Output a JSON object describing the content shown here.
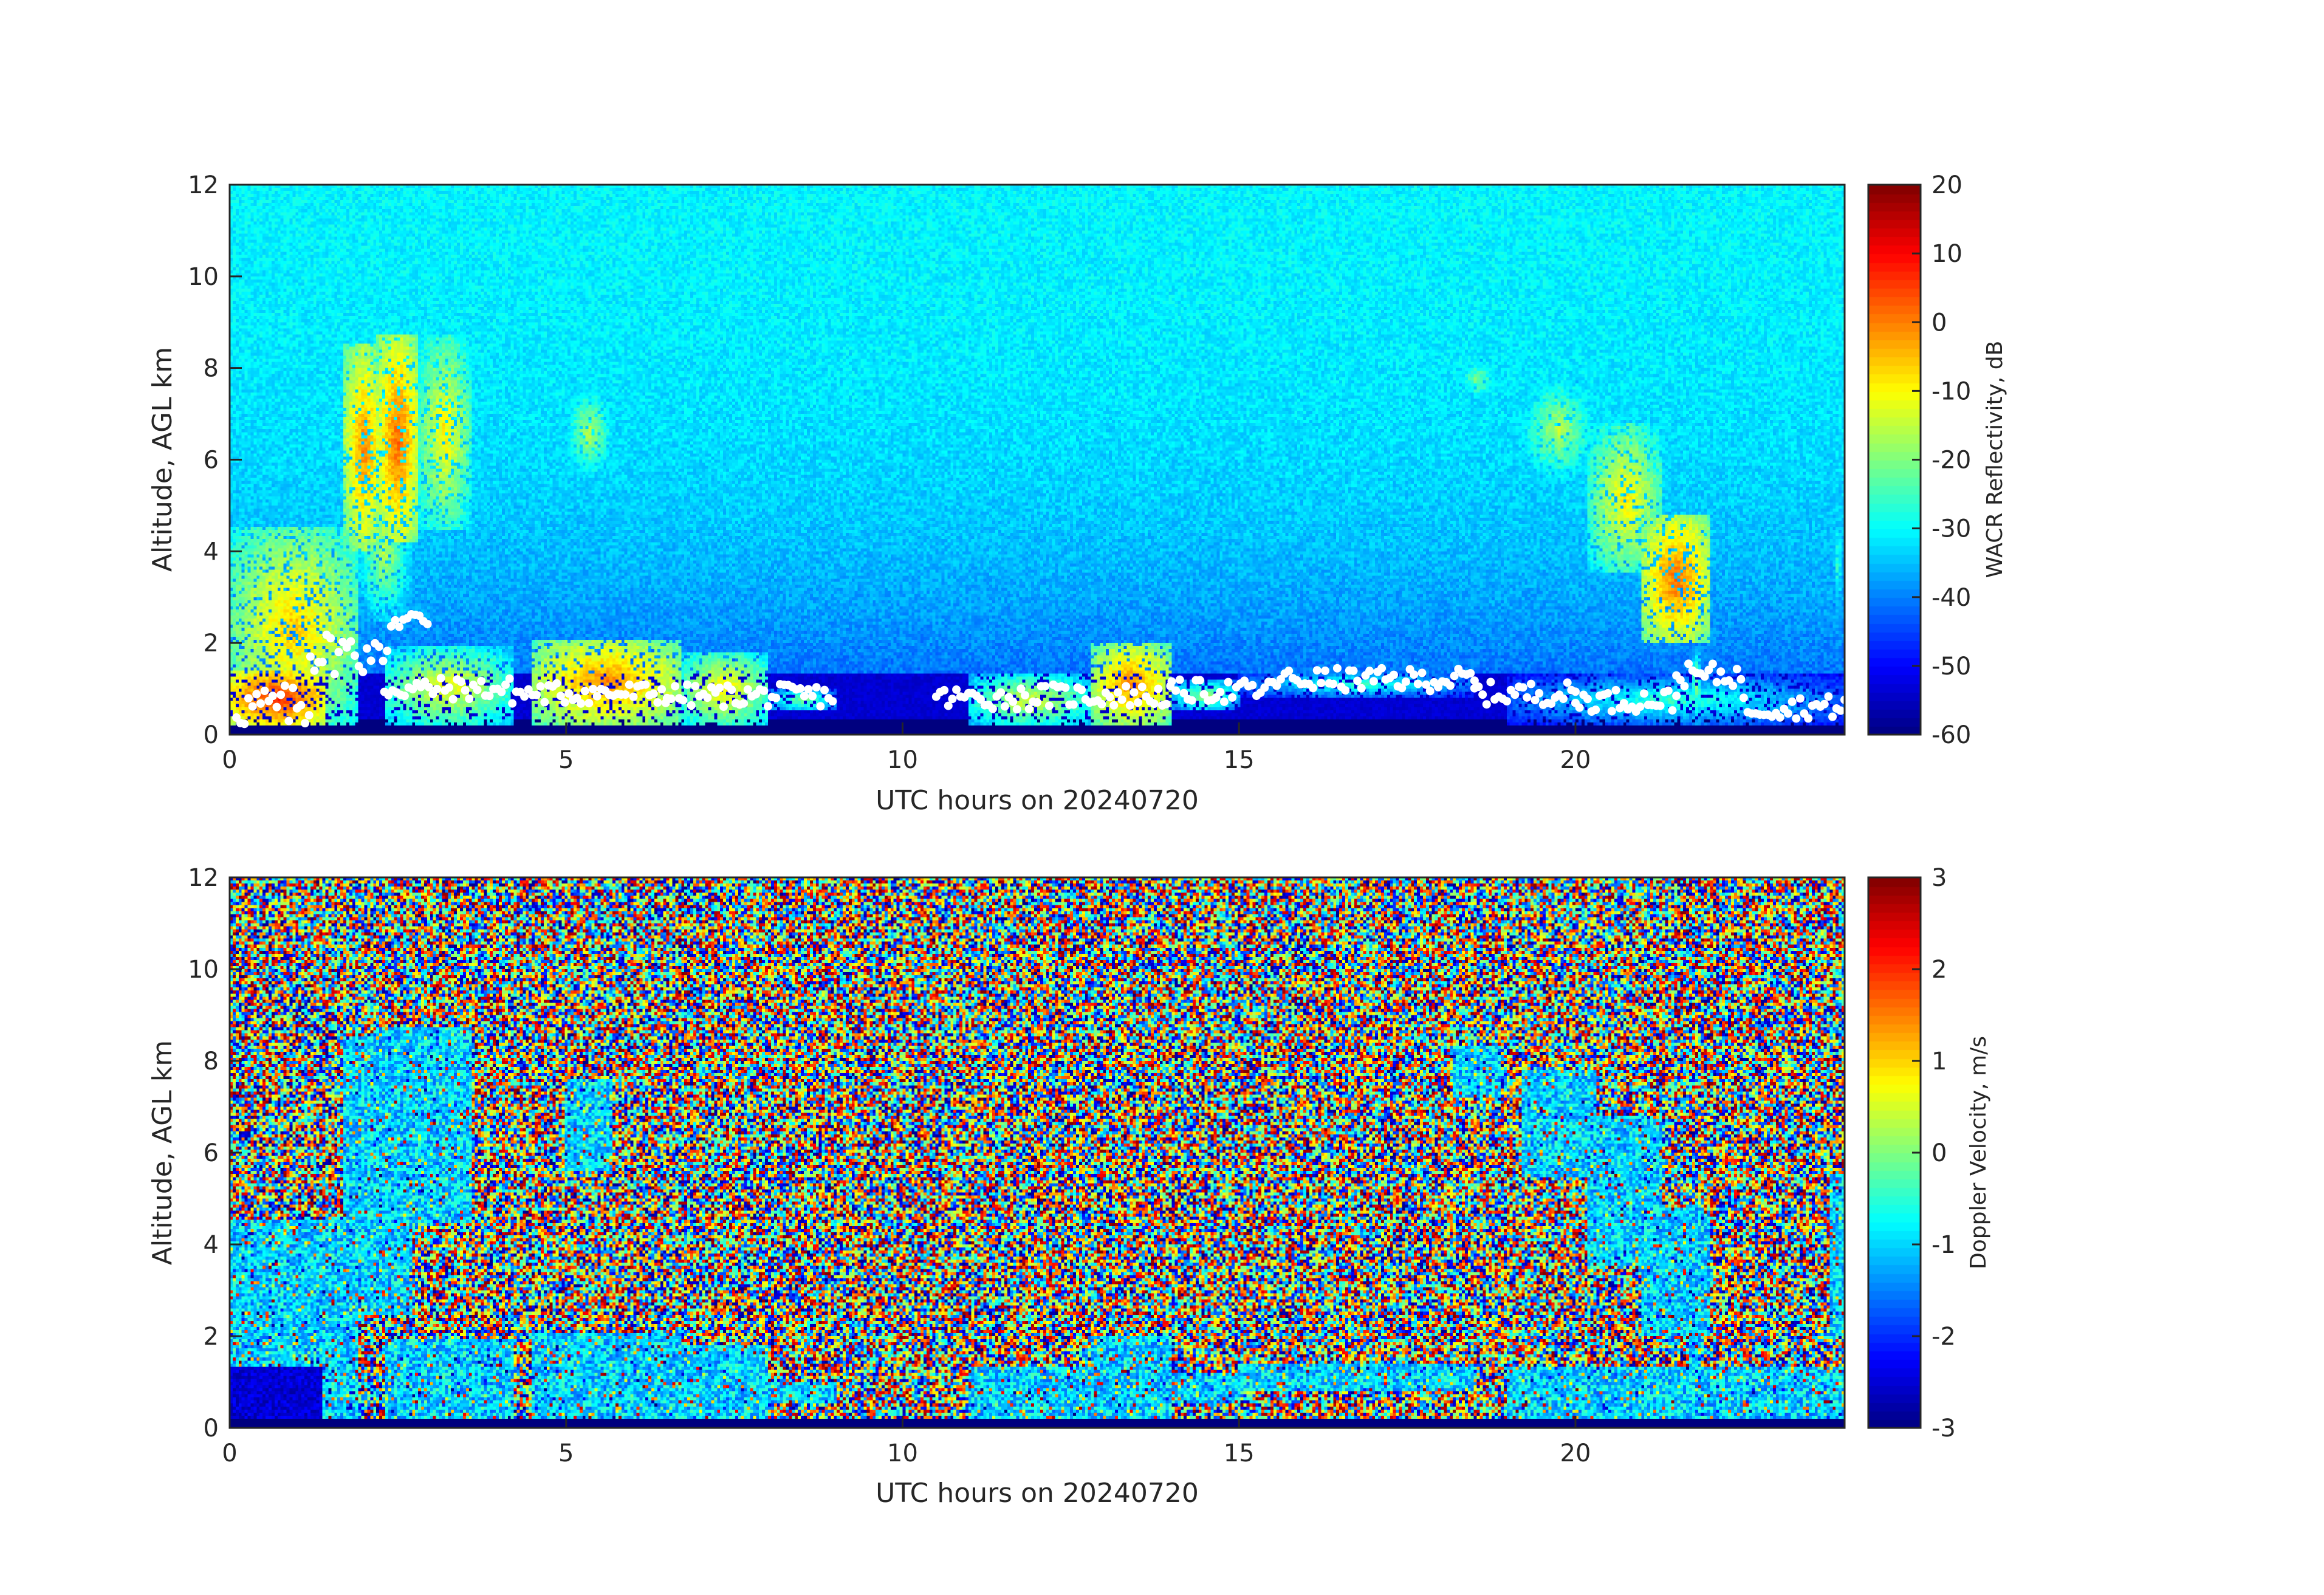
{
  "chart_data": [
    {
      "type": "heatmap",
      "xlabel": "UTC hours on 20240720",
      "ylabel": "Altitude, AGL km",
      "xlim": [
        0,
        24
      ],
      "ylim": [
        0,
        12
      ],
      "xticks": [
        "0",
        "5",
        "10",
        "15",
        "20"
      ],
      "yticks": [
        "0",
        "2",
        "4",
        "6",
        "8",
        "10",
        "12"
      ],
      "colormap": "jet",
      "colorbar": {
        "label": "WACR Reflectivity, dB",
        "range": [
          -60,
          20
        ],
        "ticks": [
          "20",
          "10",
          "0",
          "-10",
          "-20",
          "-30",
          "-40",
          "-50",
          "-60"
        ]
      },
      "overlay": "white dots marking cloud base below ~3 km",
      "grid": false
    },
    {
      "type": "heatmap",
      "xlabel": "UTC hours on 20240720",
      "ylabel": "Altitude, AGL km",
      "xlim": [
        0,
        24
      ],
      "ylim": [
        0,
        12
      ],
      "xticks": [
        "0",
        "5",
        "10",
        "15",
        "20"
      ],
      "yticks": [
        "0",
        "2",
        "4",
        "6",
        "8",
        "10",
        "12"
      ],
      "colormap": "jet",
      "colorbar": {
        "label": "Doppler Velocity, m/s",
        "range": [
          -3,
          3
        ],
        "ticks": [
          "3",
          "2",
          "1",
          "0",
          "-1",
          "-2",
          "-3"
        ]
      },
      "grid": false
    }
  ]
}
